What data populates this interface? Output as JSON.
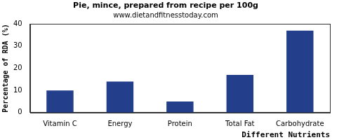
{
  "chart_data": {
    "type": "bar",
    "title": "Pie, mince, prepared from recipe per 100g",
    "subtitle": "www.dietandfitnesstoday.com",
    "x_label": "Different Nutrients",
    "y_label": "Percentage of RDA (%)",
    "categories": [
      "Vitamin C",
      "Energy",
      "Protein",
      "Total Fat",
      "Carbohydrate"
    ],
    "values": [
      10,
      14,
      5,
      17,
      37
    ],
    "color": "#233e8b",
    "ylim": [
      0,
      40
    ],
    "yticks": [
      0,
      10,
      20,
      30,
      40
    ],
    "grid": false
  }
}
